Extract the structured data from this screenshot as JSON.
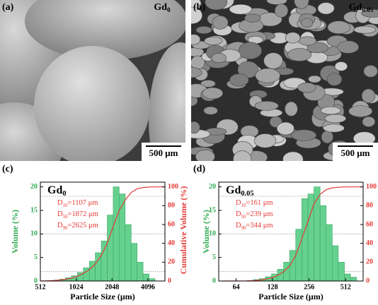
{
  "panels": [
    {
      "label": "(a)",
      "sample": {
        "main": "Gd",
        "sub": "0"
      },
      "scale_bar": "500 μm"
    },
    {
      "label": "(b)",
      "sample": {
        "main": "Gd",
        "sub": "0.05"
      },
      "scale_bar": "500 μm"
    }
  ],
  "chart_data": [
    {
      "type": "histogram",
      "panel_label": "(c)",
      "sample": {
        "main": "Gd",
        "sub": "0"
      },
      "xlabel": "Particle Size (μm)",
      "ylabel": "Volume (%)",
      "y2label": "Cumulative Volume (%)",
      "log_x": 2,
      "bins": [
        588,
        660,
        741,
        832,
        934,
        1048,
        1176,
        1321,
        1482,
        1663,
        1868,
        2096,
        2353,
        2641,
        2965,
        3327,
        3735,
        4193,
        4705
      ],
      "values": [
        0.1,
        0.2,
        0.4,
        0.7,
        1.1,
        1.8,
        2.8,
        4.2,
        6,
        8.5,
        14,
        20,
        18.5,
        12,
        8,
        4,
        1.5,
        0.5
      ],
      "color": "#66d08e",
      "edge_color": "#3aa866",
      "xlim": [
        512,
        5700
      ],
      "xticks": [
        512,
        1024,
        2048,
        4096
      ],
      "ylim": [
        0,
        21
      ],
      "yticks": [
        0,
        5,
        10,
        15,
        20
      ],
      "y2lim": [
        0,
        105
      ],
      "y2ticks": [
        0,
        20,
        40,
        60,
        80,
        100
      ],
      "cumulative": {
        "axis": "y2",
        "color": "#e53935",
        "x": [
          520,
          588,
          660,
          741,
          832,
          934,
          1048,
          1176,
          1321,
          1482,
          1663,
          1868,
          2096,
          2353,
          2641,
          2965,
          3327,
          3735,
          4193,
          4705,
          5600
        ],
        "values": [
          0,
          0.2,
          0.5,
          1,
          1.8,
          3,
          5,
          8,
          12,
          18,
          27,
          40,
          58,
          75,
          86,
          94,
          98,
          99.3,
          99.8,
          100,
          100
        ]
      },
      "ref_levels": [
        10,
        50,
        90
      ],
      "annotations": [
        {
          "main": "D",
          "sub": "10",
          "rest": "=1107 μm"
        },
        {
          "main": "D",
          "sub": "50",
          "rest": "=1872 μm"
        },
        {
          "main": "D",
          "sub": "90",
          "rest": "=2625 μm"
        }
      ]
    },
    {
      "type": "histogram",
      "panel_label": "(d)",
      "sample": {
        "main": "Gd",
        "sub": "0.05"
      },
      "xlabel": "Particle Size (μm)",
      "ylabel": "Volume (%)",
      "y2label": "Cumulative Volume (%)",
      "log_x": 2,
      "bins": [
        78.8,
        88.4,
        99.3,
        111.4,
        125.1,
        140.4,
        157.6,
        176.9,
        198.5,
        222.9,
        250.1,
        280.8,
        315.2,
        353.8,
        397.1,
        445.7,
        500.3,
        561.6,
        630.4
      ],
      "values": [
        0.1,
        0.3,
        0.5,
        0.9,
        1.5,
        2.5,
        4,
        6.5,
        11,
        17.5,
        18.5,
        20,
        16,
        12,
        7.5,
        4,
        1.5,
        0.8
      ],
      "color": "#66d08e",
      "edge_color": "#3aa866",
      "xlim": [
        46,
        714
      ],
      "xticks": [
        64,
        128,
        256,
        512
      ],
      "ylim": [
        0,
        21
      ],
      "yticks": [
        0,
        5,
        10,
        15,
        20
      ],
      "y2lim": [
        0,
        105
      ],
      "y2ticks": [
        0,
        20,
        40,
        60,
        80,
        100
      ],
      "cumulative": {
        "axis": "y2",
        "color": "#e53935",
        "x": [
          50,
          78.8,
          88.4,
          99.3,
          111.4,
          125.1,
          140.4,
          157.6,
          176.9,
          198.5,
          222.9,
          250.1,
          280.8,
          315.2,
          353.8,
          397.1,
          445.7,
          500.3,
          561.6,
          630.4,
          700
        ],
        "values": [
          0,
          0.1,
          0.4,
          0.9,
          1.8,
          3.3,
          5.8,
          9.8,
          16,
          27,
          45,
          63,
          82,
          92,
          97,
          99,
          99.6,
          99.9,
          100,
          100,
          100
        ]
      },
      "ref_levels": [
        10,
        50,
        90
      ],
      "annotations": [
        {
          "main": "D",
          "sub": "10",
          "rest": "=161 μm"
        },
        {
          "main": "D",
          "sub": "50",
          "rest": "=239 μm"
        },
        {
          "main": "D",
          "sub": "90",
          "rest": "=344 μm"
        }
      ]
    }
  ]
}
